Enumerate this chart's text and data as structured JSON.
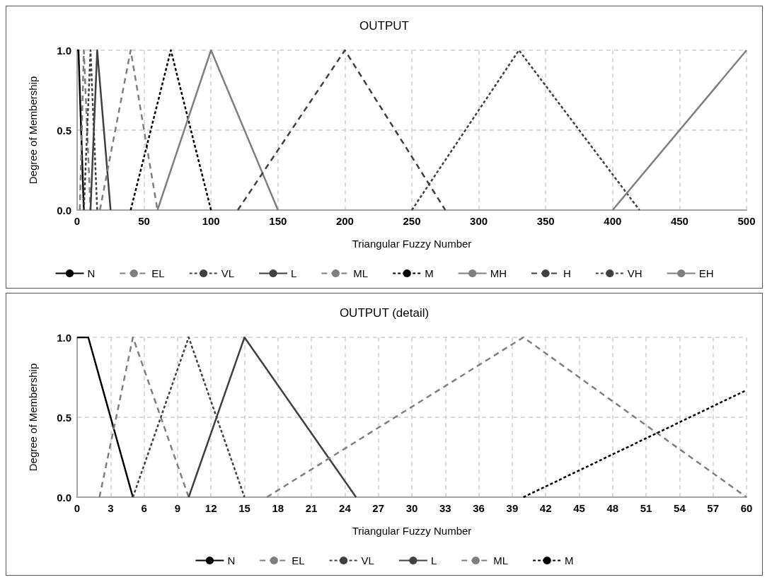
{
  "chart_data": [
    {
      "type": "line",
      "title": "OUTPUT",
      "xlabel": "Triangular Fuzzy Number",
      "ylabel": "Degree of Membership",
      "xlim": [
        0,
        500
      ],
      "xticks": [
        0,
        50,
        100,
        150,
        200,
        250,
        300,
        350,
        400,
        450,
        500
      ],
      "ylim": [
        0,
        1
      ],
      "yticks": [
        {
          "value": 0,
          "label": "0.0"
        },
        {
          "value": 0.5,
          "label": "0.5"
        },
        {
          "value": 1,
          "label": "1.0"
        }
      ],
      "grid": true,
      "legend": "bottom",
      "marker": "none",
      "series": [
        {
          "name": "N",
          "color": "#000000",
          "line_style": "solid",
          "x": [
            0,
            1,
            5
          ],
          "values": [
            1,
            1,
            0
          ]
        },
        {
          "name": "EL",
          "color": "#7f7f7f",
          "line_style": "dashed",
          "x": [
            2,
            5,
            10
          ],
          "values": [
            0,
            1,
            0
          ]
        },
        {
          "name": "VL",
          "color": "#404040",
          "line_style": "dotted",
          "x": [
            5,
            10,
            15
          ],
          "values": [
            0,
            1,
            0
          ]
        },
        {
          "name": "L",
          "color": "#404040",
          "line_style": "solid",
          "x": [
            10,
            15,
            25
          ],
          "values": [
            0,
            1,
            0
          ]
        },
        {
          "name": "ML",
          "color": "#7f7f7f",
          "line_style": "dashed",
          "x": [
            17,
            40,
            60
          ],
          "values": [
            0,
            1,
            0
          ]
        },
        {
          "name": "M",
          "color": "#000000",
          "line_style": "dotted",
          "x": [
            40,
            70,
            100
          ],
          "values": [
            0,
            1,
            0
          ]
        },
        {
          "name": "MH",
          "color": "#7f7f7f",
          "line_style": "solid",
          "x": [
            60,
            100,
            150
          ],
          "values": [
            0,
            1,
            0
          ]
        },
        {
          "name": "H",
          "color": "#404040",
          "line_style": "dashed",
          "x": [
            120,
            200,
            275
          ],
          "values": [
            0,
            1,
            0
          ]
        },
        {
          "name": "VH",
          "color": "#404040",
          "line_style": "dotted",
          "x": [
            250,
            330,
            420
          ],
          "values": [
            0,
            1,
            0
          ]
        },
        {
          "name": "EH",
          "color": "#7f7f7f",
          "line_style": "solid",
          "x": [
            400,
            500
          ],
          "values": [
            0,
            1
          ]
        }
      ]
    },
    {
      "type": "line",
      "title": "OUTPUT (detail)",
      "xlabel": "Triangular Fuzzy Number",
      "ylabel": "Degree of Membership",
      "xlim": [
        0,
        60
      ],
      "xticks": [
        0,
        3,
        6,
        9,
        12,
        15,
        18,
        21,
        24,
        27,
        30,
        33,
        36,
        39,
        42,
        45,
        48,
        51,
        54,
        57,
        60
      ],
      "ylim": [
        0,
        1
      ],
      "yticks": [
        {
          "value": 0,
          "label": "0.0"
        },
        {
          "value": 0.5,
          "label": "0.5"
        },
        {
          "value": 1,
          "label": "1.0"
        }
      ],
      "grid": true,
      "legend": "bottom",
      "marker": "none",
      "series": [
        {
          "name": "N",
          "color": "#000000",
          "line_style": "solid",
          "x": [
            0,
            1,
            5
          ],
          "values": [
            1,
            1,
            0
          ]
        },
        {
          "name": "EL",
          "color": "#7f7f7f",
          "line_style": "dashed",
          "x": [
            2,
            5,
            10
          ],
          "values": [
            0,
            1,
            0
          ]
        },
        {
          "name": "VL",
          "color": "#404040",
          "line_style": "dotted",
          "x": [
            5,
            10,
            15
          ],
          "values": [
            0,
            1,
            0
          ]
        },
        {
          "name": "L",
          "color": "#404040",
          "line_style": "solid",
          "x": [
            10,
            15,
            25
          ],
          "values": [
            0,
            1,
            0
          ]
        },
        {
          "name": "ML",
          "color": "#7f7f7f",
          "line_style": "dashed",
          "x": [
            17,
            40,
            60
          ],
          "values": [
            0,
            1,
            0
          ]
        },
        {
          "name": "M",
          "color": "#000000",
          "line_style": "dotted",
          "x": [
            40,
            60
          ],
          "values": [
            0,
            0.67
          ]
        }
      ]
    }
  ]
}
